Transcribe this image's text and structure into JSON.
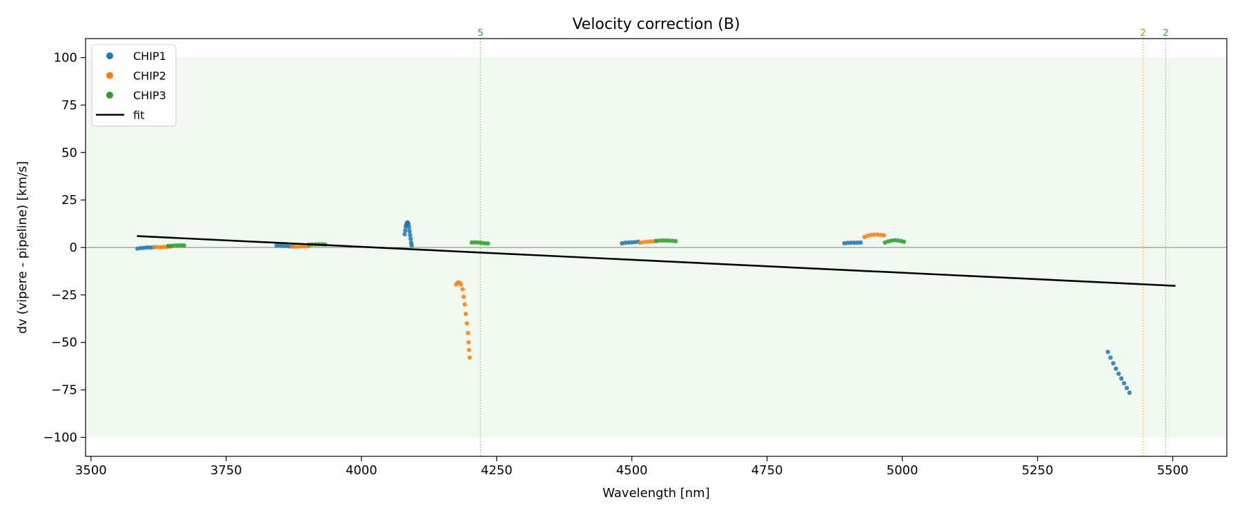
{
  "chart_data": {
    "type": "scatter",
    "title": "Velocity correction (B)",
    "xlabel": "Wavelength [nm]",
    "ylabel": "dv (vipere - pipeline) [km/s]",
    "xlim": [
      3490,
      5600
    ],
    "ylim": [
      -110,
      110
    ],
    "xticks": [
      3500,
      3750,
      4000,
      4250,
      4500,
      4750,
      5000,
      5250,
      5500
    ],
    "yticks": [
      -100,
      -75,
      -50,
      -25,
      0,
      25,
      50,
      75,
      100
    ],
    "xtick_labels": [
      "3500",
      "3750",
      "4000",
      "4250",
      "4500",
      "4750",
      "5000",
      "5250",
      "5500"
    ],
    "ytick_labels": [
      "−100",
      "−75",
      "−50",
      "−25",
      "0",
      "25",
      "50",
      "75",
      "100"
    ],
    "band": {
      "ymin": -100,
      "ymax": 100,
      "color": "#2ca02c"
    },
    "zero_line": 0,
    "legend_position": "upper-left",
    "legend": [
      {
        "label": "CHIP1",
        "kind": "marker",
        "color": "#1f77b4"
      },
      {
        "label": "CHIP2",
        "kind": "marker",
        "color": "#ff7f0e"
      },
      {
        "label": "CHIP3",
        "kind": "marker",
        "color": "#2ca02c"
      },
      {
        "label": "fit",
        "kind": "line",
        "color": "#000000"
      }
    ],
    "outlier_markers": [
      {
        "x": 4220,
        "label": "5",
        "color": "#2ca02c"
      },
      {
        "x": 5445,
        "label": "2",
        "color": "#ff7f0e"
      },
      {
        "x": 5487,
        "label": "2",
        "color": "#2ca02c"
      }
    ],
    "fit": {
      "x": [
        3585,
        5505
      ],
      "y": [
        6.0,
        -20.2
      ],
      "color": "#000000"
    },
    "series": [
      {
        "name": "CHIP1",
        "color": "#1f77b4",
        "points": [
          [
            3586,
            -0.6
          ],
          [
            3592,
            -0.3
          ],
          [
            3598,
            -0.2
          ],
          [
            3604,
            0.0
          ],
          [
            3610,
            0.0
          ],
          [
            3616,
            0.1
          ],
          [
            3843,
            1.0
          ],
          [
            3849,
            1.1
          ],
          [
            3855,
            0.8
          ],
          [
            3861,
            0.8
          ],
          [
            3867,
            0.6
          ],
          [
            3873,
            0.6
          ],
          [
            4080,
            7.0
          ],
          [
            4081,
            9.0
          ],
          [
            4082,
            11.0
          ],
          [
            4083,
            12.0
          ],
          [
            4084,
            12.8
          ],
          [
            4085,
            13.2
          ],
          [
            4086,
            13.0
          ],
          [
            4087,
            12.0
          ],
          [
            4088,
            10.5
          ],
          [
            4089,
            8.5
          ],
          [
            4090,
            6.5
          ],
          [
            4091,
            4.5
          ],
          [
            4092,
            2.5
          ],
          [
            4093,
            1.0
          ],
          [
            4482,
            2.2
          ],
          [
            4488,
            2.5
          ],
          [
            4494,
            2.6
          ],
          [
            4500,
            2.7
          ],
          [
            4506,
            2.8
          ],
          [
            4512,
            3.0
          ],
          [
            4893,
            2.2
          ],
          [
            4899,
            2.4
          ],
          [
            4905,
            2.5
          ],
          [
            4911,
            2.5
          ],
          [
            4917,
            2.5
          ],
          [
            4923,
            2.6
          ],
          [
            5380,
            -55.0
          ],
          [
            5385,
            -58.0
          ],
          [
            5390,
            -61.0
          ],
          [
            5395,
            -63.8
          ],
          [
            5400,
            -66.5
          ],
          [
            5405,
            -69.0
          ],
          [
            5410,
            -71.5
          ],
          [
            5415,
            -74.0
          ],
          [
            5420,
            -76.5
          ]
        ]
      },
      {
        "name": "CHIP2",
        "color": "#ff7f0e",
        "points": [
          [
            3617,
            0.2
          ],
          [
            3623,
            0.2
          ],
          [
            3629,
            0.2
          ],
          [
            3635,
            0.3
          ],
          [
            3641,
            0.3
          ],
          [
            3647,
            0.4
          ],
          [
            3872,
            0.5
          ],
          [
            3878,
            0.5
          ],
          [
            3884,
            0.5
          ],
          [
            3890,
            0.6
          ],
          [
            3896,
            0.6
          ],
          [
            3902,
            0.6
          ],
          [
            4175,
            -19.5
          ],
          [
            4178,
            -18.5
          ],
          [
            4181,
            -18.5
          ],
          [
            4184,
            -19.5
          ],
          [
            4187,
            -22.0
          ],
          [
            4189,
            -26.0
          ],
          [
            4191,
            -30.0
          ],
          [
            4193,
            -35.0
          ],
          [
            4195,
            -40.0
          ],
          [
            4197,
            -45.0
          ],
          [
            4198,
            -50.0
          ],
          [
            4199,
            -54.0
          ],
          [
            4200,
            -58.0
          ],
          [
            4515,
            2.5
          ],
          [
            4521,
            2.8
          ],
          [
            4527,
            3.0
          ],
          [
            4533,
            3.1
          ],
          [
            4539,
            3.2
          ],
          [
            4545,
            3.3
          ],
          [
            4930,
            5.5
          ],
          [
            4936,
            6.2
          ],
          [
            4942,
            6.6
          ],
          [
            4948,
            6.8
          ],
          [
            4954,
            6.8
          ],
          [
            4960,
            6.6
          ],
          [
            4966,
            6.4
          ]
        ]
      },
      {
        "name": "CHIP3",
        "color": "#2ca02c",
        "points": [
          [
            3643,
            0.8
          ],
          [
            3649,
            0.9
          ],
          [
            3655,
            1.0
          ],
          [
            3661,
            1.1
          ],
          [
            3667,
            1.1
          ],
          [
            3672,
            1.1
          ],
          [
            3903,
            1.5
          ],
          [
            3909,
            1.6
          ],
          [
            3915,
            1.6
          ],
          [
            3921,
            1.7
          ],
          [
            3927,
            1.7
          ],
          [
            3933,
            1.6
          ],
          [
            4204,
            2.6
          ],
          [
            4210,
            2.7
          ],
          [
            4216,
            2.6
          ],
          [
            4222,
            2.4
          ],
          [
            4228,
            2.2
          ],
          [
            4234,
            2.1
          ],
          [
            4545,
            3.5
          ],
          [
            4551,
            3.6
          ],
          [
            4557,
            3.7
          ],
          [
            4563,
            3.7
          ],
          [
            4569,
            3.6
          ],
          [
            4575,
            3.5
          ],
          [
            4581,
            3.3
          ],
          [
            4968,
            2.6
          ],
          [
            4974,
            3.2
          ],
          [
            4980,
            3.6
          ],
          [
            4986,
            3.8
          ],
          [
            4992,
            3.7
          ],
          [
            4998,
            3.4
          ],
          [
            5003,
            3.0
          ]
        ]
      }
    ]
  }
}
